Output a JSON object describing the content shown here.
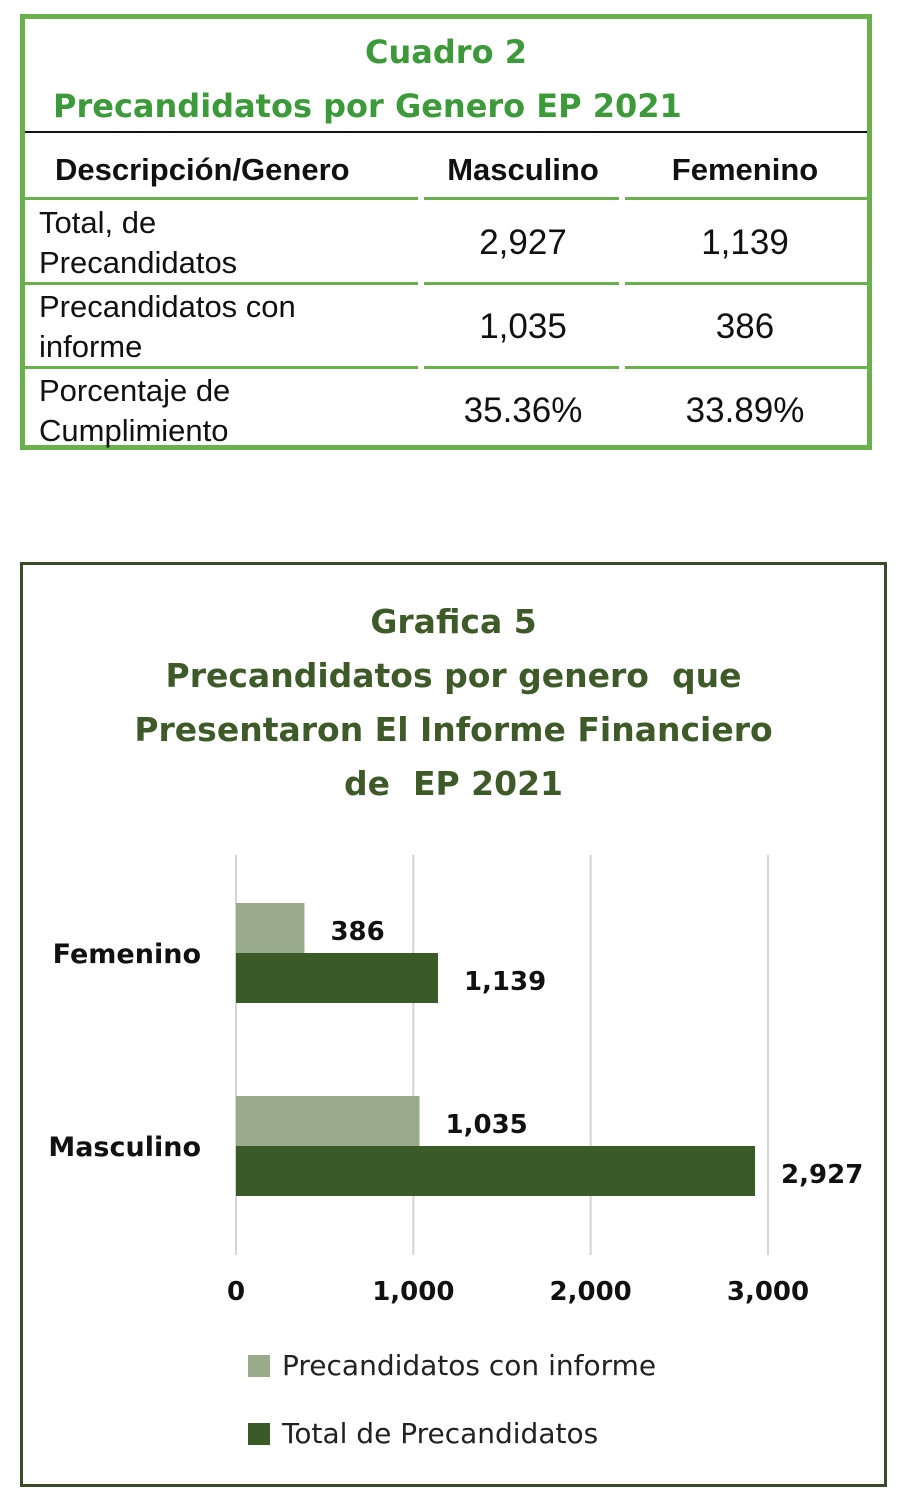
{
  "table": {
    "title_line1": "Cuadro 2",
    "title_line2": "Precandidatos por Genero EP 2021",
    "headers": [
      "Descripción/Genero",
      "Masculino",
      "Femenino"
    ],
    "rows": [
      {
        "label_line1": "Total, de",
        "label_line2": "Precandidatos",
        "masculino": "2,927",
        "femenino": "1,139"
      },
      {
        "label_line1": "Precandidatos con",
        "label_line2": "informe",
        "masculino": "1,035",
        "femenino": "386"
      },
      {
        "label_line1": "Porcentaje de",
        "label_line2": "Cumplimiento",
        "masculino": "35.36%",
        "femenino": "33.89%"
      }
    ],
    "colors": {
      "border": "#6ab04c",
      "title": "#3d9a3a"
    }
  },
  "chart": {
    "title_lines": [
      "Grafica 5",
      "Precandidatos por genero  que",
      "Presentaron El Informe Financiero",
      "de  EP 2021"
    ]
  },
  "chart_data": {
    "type": "bar",
    "orientation": "horizontal",
    "categories": [
      "Femenino",
      "Masculino"
    ],
    "series": [
      {
        "name": "Precandidatos con informe",
        "values": [
          386,
          1035
        ],
        "labels": [
          "386",
          "1,035"
        ],
        "color": "#9aab8c"
      },
      {
        "name": "Total de Precandidatos",
        "values": [
          1139,
          2927
        ],
        "labels": [
          "1,139",
          "2,927"
        ],
        "color": "#3a5a28"
      }
    ],
    "xlim": [
      0,
      3000
    ],
    "xticks": [
      0,
      1000,
      2000,
      3000
    ],
    "xtick_labels": [
      "0",
      "1,000",
      "2,000",
      "3,000"
    ],
    "grid": true,
    "legend_placement": "bottom"
  }
}
